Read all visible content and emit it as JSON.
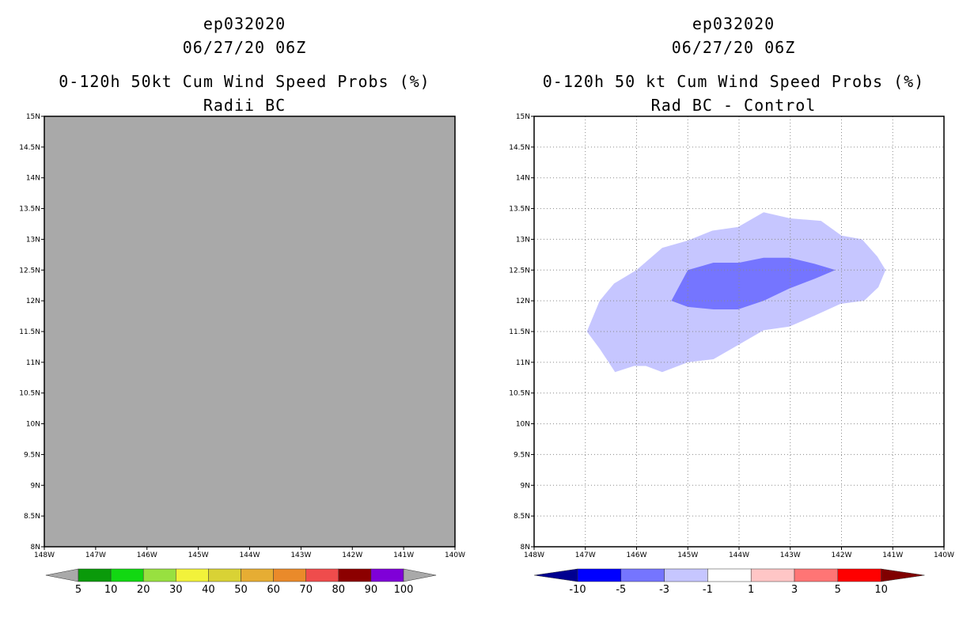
{
  "panels": {
    "left": {
      "storm": "ep032020",
      "datetime": "06/27/20 06Z",
      "title": "0-120h 50kt Cum Wind Speed Probs (%)",
      "subtitle": "Radii BC"
    },
    "right": {
      "storm": "ep032020",
      "datetime": "06/27/20 06Z",
      "title": "0-120h 50 kt Cum Wind Speed Probs (%)",
      "subtitle": "Rad BC - Control"
    }
  },
  "chart_data": [
    {
      "type": "heatmap",
      "name": "radii-bc",
      "xlim": [
        -148,
        -140
      ],
      "ylim": [
        8,
        15
      ],
      "x_tick_values": [
        -148,
        -147,
        -146,
        -145,
        -144,
        -143,
        -142,
        -141,
        -140
      ],
      "x_tick_labels": [
        "148W",
        "147W",
        "146W",
        "145W",
        "144W",
        "143W",
        "142W",
        "141W",
        "140W"
      ],
      "y_tick_values": [
        8,
        8.5,
        9,
        9.5,
        10,
        10.5,
        11,
        11.5,
        12,
        12.5,
        13,
        13.5,
        14,
        14.5,
        15
      ],
      "y_tick_labels": [
        "8N",
        "8.5N",
        "9N",
        "9.5N",
        "10N",
        "10.5N",
        "11N",
        "11.5N",
        "12N",
        "12.5N",
        "13N",
        "13.5N",
        "14N",
        "14.5N",
        "15N"
      ],
      "grid": false,
      "field": "uniform gray (no data)",
      "colors": {
        "nodata": "#a9a9a9"
      },
      "colorbar": {
        "levels": [
          "5",
          "10",
          "20",
          "30",
          "40",
          "50",
          "60",
          "70",
          "80",
          "90",
          "100"
        ],
        "colors": [
          "#a9a9a9",
          "#0a9a0a",
          "#12d812",
          "#98e040",
          "#f2f23a",
          "#d9d235",
          "#e6ad33",
          "#ea8a2a",
          "#ef4c4c",
          "#8c0000",
          "#7f00d8",
          "#a9a9a9"
        ]
      }
    },
    {
      "type": "heatmap",
      "name": "rad-bc-minus-control",
      "xlim": [
        -148,
        -140
      ],
      "ylim": [
        8,
        15
      ],
      "x_tick_values": [
        -148,
        -147,
        -146,
        -145,
        -144,
        -143,
        -142,
        -141,
        -140
      ],
      "x_tick_labels": [
        "148W",
        "147W",
        "146W",
        "145W",
        "144W",
        "143W",
        "142W",
        "141W",
        "140W"
      ],
      "y_tick_values": [
        8,
        8.5,
        9,
        9.5,
        10,
        10.5,
        11,
        11.5,
        12,
        12.5,
        13,
        13.5,
        14,
        14.5,
        15
      ],
      "y_tick_labels": [
        "8N",
        "8.5N",
        "9N",
        "9.5N",
        "10N",
        "10.5N",
        "11N",
        "11.5N",
        "12N",
        "12.5N",
        "13N",
        "13.5N",
        "14N",
        "14.5N",
        "15N"
      ],
      "grid": true,
      "contours": [
        {
          "level": "-3 to -1",
          "color": "#c6c6ff",
          "points": [
            [
              -146.97,
              11.5
            ],
            [
              -146.72,
              11.22
            ],
            [
              -146.52,
              10.97
            ],
            [
              -146.42,
              10.84
            ],
            [
              -146.05,
              10.94
            ],
            [
              -145.82,
              10.94
            ],
            [
              -145.5,
              10.84
            ],
            [
              -145.0,
              11.0
            ],
            [
              -144.5,
              11.05
            ],
            [
              -144.02,
              11.28
            ],
            [
              -143.52,
              11.52
            ],
            [
              -143.02,
              11.58
            ],
            [
              -142.52,
              11.76
            ],
            [
              -142.02,
              11.95
            ],
            [
              -141.56,
              12.0
            ],
            [
              -141.28,
              12.22
            ],
            [
              -141.14,
              12.5
            ],
            [
              -141.3,
              12.72
            ],
            [
              -141.6,
              13.0
            ],
            [
              -142.0,
              13.06
            ],
            [
              -142.4,
              13.3
            ],
            [
              -143.0,
              13.34
            ],
            [
              -143.52,
              13.44
            ],
            [
              -144.02,
              13.2
            ],
            [
              -144.52,
              13.14
            ],
            [
              -145.0,
              12.98
            ],
            [
              -145.5,
              12.86
            ],
            [
              -146.0,
              12.5
            ],
            [
              -146.44,
              12.28
            ],
            [
              -146.72,
              12.0
            ]
          ]
        },
        {
          "level": "-5 to -3",
          "color": "#7575ff",
          "points": [
            [
              -145.32,
              12.0
            ],
            [
              -145.0,
              12.5
            ],
            [
              -144.5,
              12.62
            ],
            [
              -144.0,
              12.62
            ],
            [
              -143.52,
              12.7
            ],
            [
              -143.02,
              12.7
            ],
            [
              -142.52,
              12.6
            ],
            [
              -142.12,
              12.5
            ],
            [
              -142.52,
              12.36
            ],
            [
              -143.02,
              12.2
            ],
            [
              -143.52,
              12.0
            ],
            [
              -144.02,
              11.86
            ],
            [
              -144.5,
              11.86
            ],
            [
              -145.0,
              11.9
            ]
          ]
        }
      ],
      "colorbar": {
        "levels": [
          "-10",
          "-5",
          "-3",
          "-1",
          "1",
          "3",
          "5",
          "10"
        ],
        "colors": [
          "#000090",
          "#0000ff",
          "#7575ff",
          "#c6c6ff",
          "#ffffff",
          "#ffc6c6",
          "#ff7575",
          "#ff0000",
          "#800000"
        ]
      }
    }
  ]
}
